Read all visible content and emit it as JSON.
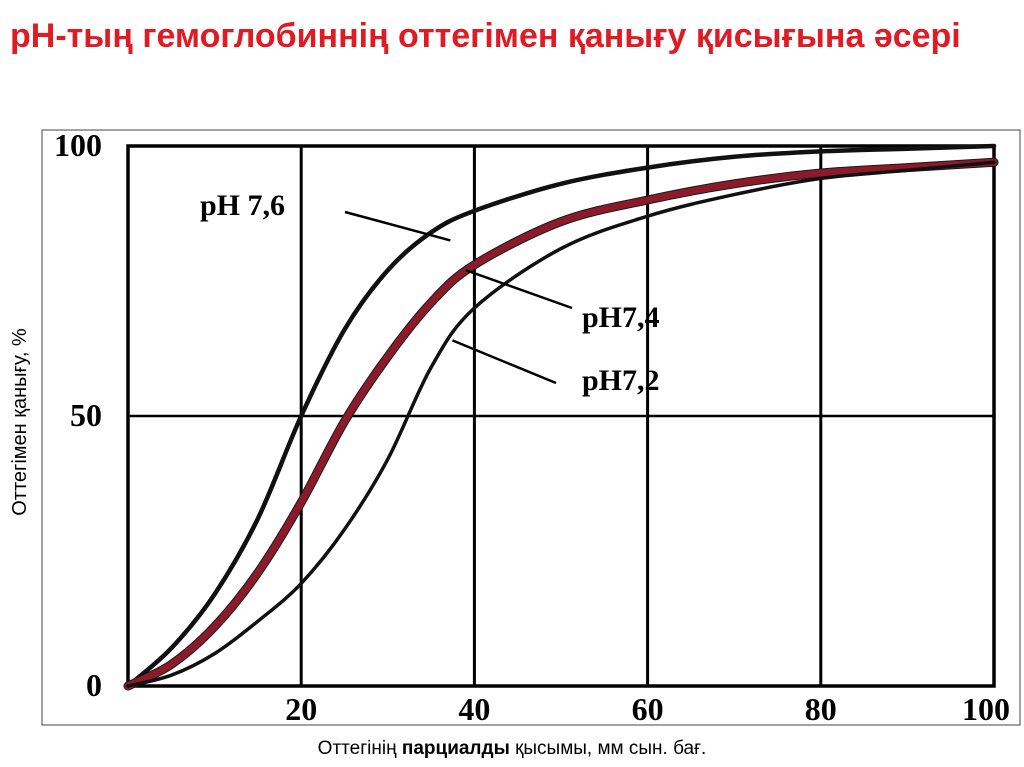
{
  "title": "рН-тың гемоглобиннің оттегімен қанығу қисығына әсері",
  "ylabel": "Оттегімен қанығу, %",
  "xlabel_parts": {
    "before": "Оттегінің ",
    "bold": "парциалды",
    "after": " қысымы, мм сын. бағ."
  },
  "colors": {
    "title": "#e01b24",
    "axis": "#000000",
    "curve_7_6": "#111111",
    "curve_7_4": "#8b1a2a",
    "curve_7_2": "#111111"
  },
  "chart_data": {
    "type": "line",
    "title": "рН-тың гемоглобиннің оттегімен қанығу қисығына әсері",
    "xlabel": "Оттегінің парциалды қысымы, мм сын. бағ.",
    "ylabel": "Оттегімен қанығу, %",
    "xlim": [
      0,
      100
    ],
    "ylim": [
      0,
      100
    ],
    "x_ticks": [
      20,
      40,
      60,
      80,
      100
    ],
    "y_ticks": [
      0,
      50,
      100
    ],
    "grid": true,
    "series": [
      {
        "name": "pH 7,6",
        "x": [
          0,
          5,
          10,
          15,
          20,
          25,
          30,
          35,
          40,
          50,
          60,
          70,
          80,
          90,
          100
        ],
        "y": [
          0,
          7,
          17,
          31,
          50,
          66,
          77,
          84,
          88,
          93,
          96,
          98,
          99,
          99.5,
          100
        ]
      },
      {
        "name": "рН7,4",
        "x": [
          0,
          5,
          10,
          15,
          20,
          25,
          30,
          35,
          40,
          50,
          60,
          70,
          80,
          90,
          100
        ],
        "y": [
          0,
          4,
          11,
          21,
          34,
          49,
          61,
          71,
          78,
          86,
          90,
          93,
          95,
          96,
          97
        ]
      },
      {
        "name": "рН7,2",
        "x": [
          0,
          5,
          10,
          15,
          20,
          25,
          30,
          35,
          40,
          50,
          60,
          70,
          80,
          90,
          100
        ],
        "y": [
          0,
          2,
          6,
          12,
          19,
          29,
          42,
          59,
          70,
          81,
          87,
          91,
          94,
          95.5,
          97
        ]
      }
    ],
    "annotations": [
      "pH 7,6",
      "рН7,4",
      "рН7,2"
    ]
  }
}
